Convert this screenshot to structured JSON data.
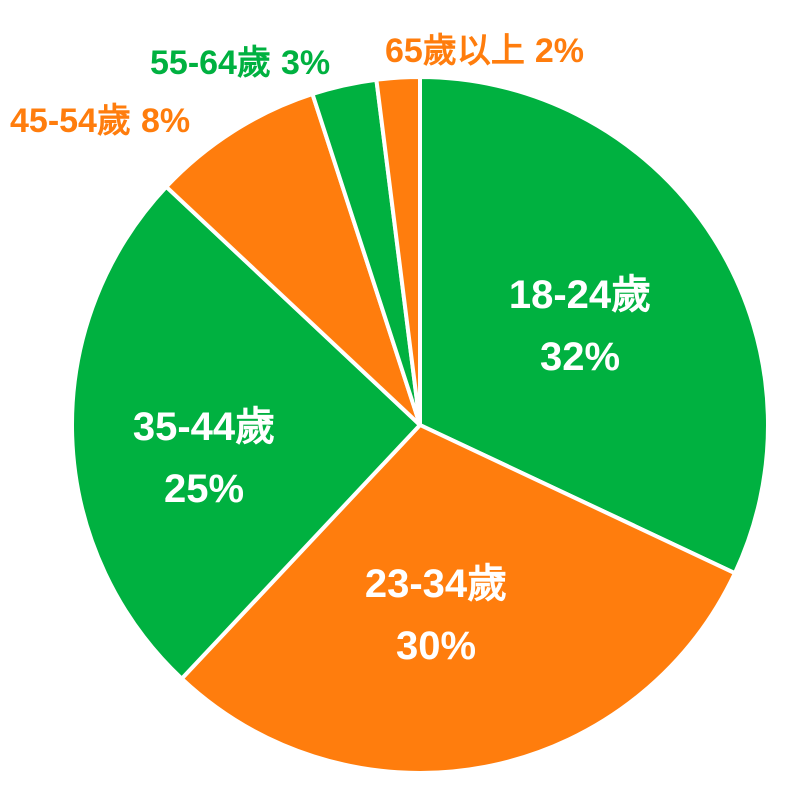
{
  "chart_data": {
    "type": "pie",
    "title": "",
    "start_angle_deg": 0,
    "direction": "clockwise",
    "colors": {
      "green": "#00b140",
      "orange": "#ff7d0d",
      "separator": "#ffffff"
    },
    "slices": [
      {
        "label": "18-24歲",
        "value": 32,
        "value_label": "32%",
        "color": "#00b140",
        "label_position": "inside"
      },
      {
        "label": "23-34歲",
        "value": 30,
        "value_label": "30%",
        "color": "#ff7d0d",
        "label_position": "inside"
      },
      {
        "label": "35-44歲",
        "value": 25,
        "value_label": "25%",
        "color": "#00b140",
        "label_position": "inside"
      },
      {
        "label": "45-54歲",
        "value": 8,
        "value_label": "8%",
        "color": "#ff7d0d",
        "label_position": "outside"
      },
      {
        "label": "55-64歲",
        "value": 3,
        "value_label": "3%",
        "color": "#00b140",
        "label_position": "outside"
      },
      {
        "label": "65歲以上",
        "value": 2,
        "value_label": "2%",
        "color": "#ff7d0d",
        "label_position": "outside"
      }
    ]
  }
}
